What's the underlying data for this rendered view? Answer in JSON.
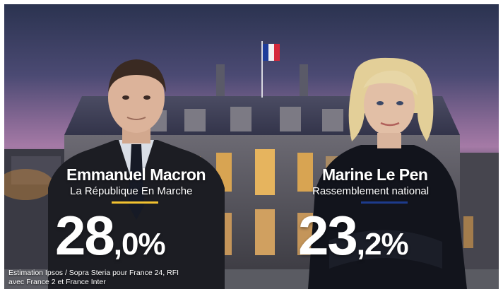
{
  "left_candidate": {
    "name": "Emmanuel Macron",
    "party": "La République En Marche",
    "result_int": "28",
    "result_dec": ",0%",
    "accent_color": "#f2c230"
  },
  "right_candidate": {
    "name": "Marine Le Pen",
    "party": "Rassemblement national",
    "result_int": "23",
    "result_dec": ",2%",
    "accent_color": "#1d3b8c"
  },
  "source_line_1": "Estimation Ipsos / Sopra Steria pour France 24, RFI",
  "source_line_2": "avec France 2 et France Inter"
}
